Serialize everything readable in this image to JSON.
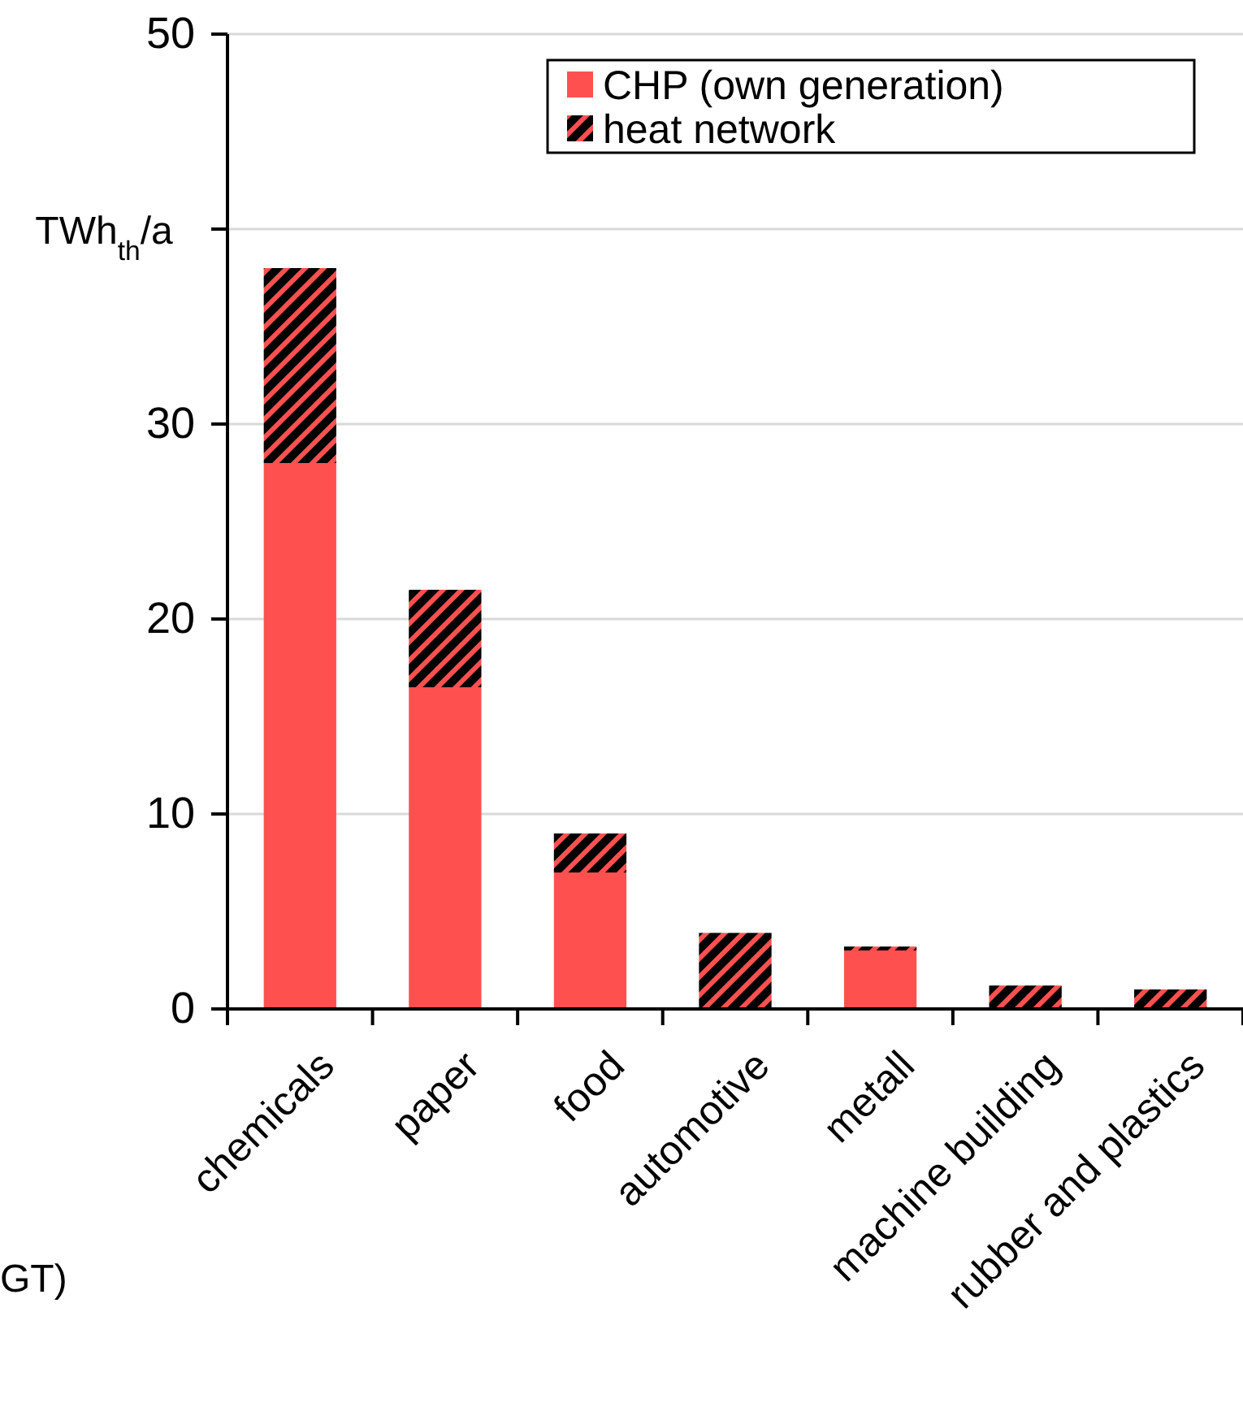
{
  "chart_data": {
    "type": "bar",
    "stacked": true,
    "ylabel": "TWh$_{th}$/a",
    "categories": [
      "chemicals",
      "paper",
      "food",
      "automotive",
      "metall",
      "machine building",
      "rubber and plastics"
    ],
    "series": [
      {
        "name": "CHP (own generation)",
        "color": "#ff5050",
        "values": [
          28,
          16.5,
          7,
          0,
          3,
          0,
          0
        ]
      },
      {
        "name": "heat network",
        "color": "#000000",
        "values": [
          10,
          5,
          2,
          3.9,
          0.2,
          1.2,
          1
        ]
      }
    ],
    "ylim": [
      0,
      50
    ],
    "yticks": [
      0,
      10,
      20,
      30,
      {
        "value": 40,
        "label": null
      },
      50
    ],
    "grid": "y",
    "legend": "top right",
    "annotations": [
      "GT)"
    ]
  }
}
